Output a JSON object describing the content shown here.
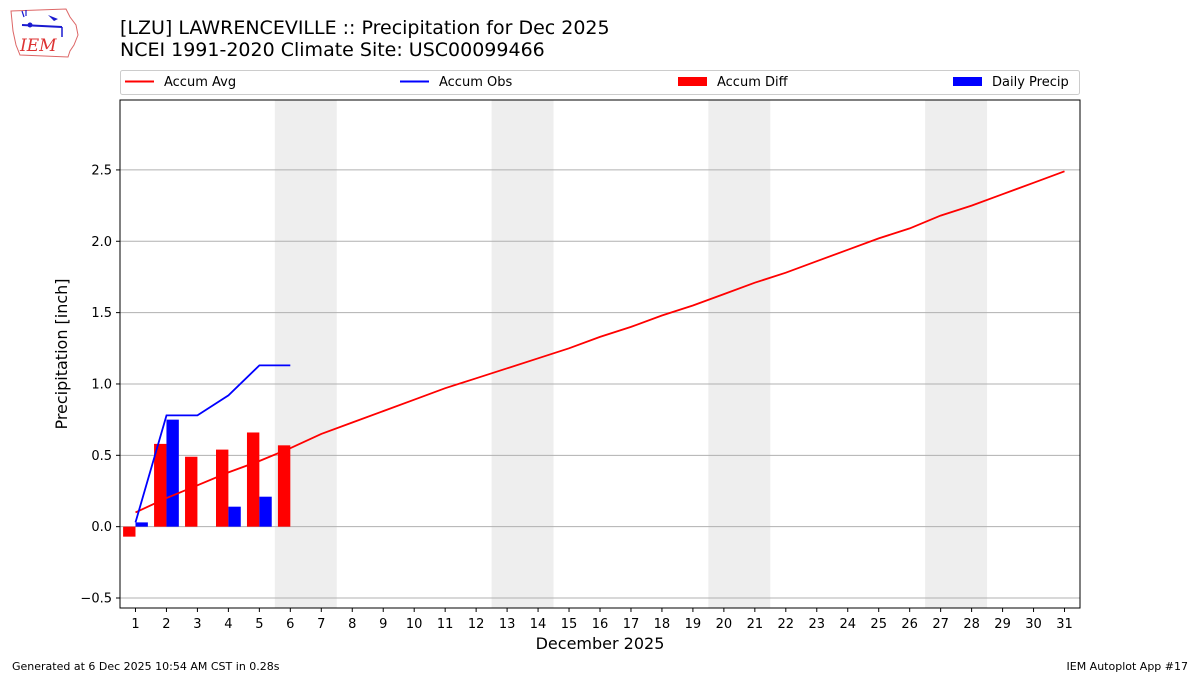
{
  "header": {
    "title_line1": "[LZU] LAWRENCEVILLE :: Precipitation for Dec 2025",
    "title_line2": "NCEI 1991-2020 Climate Site: USC00099466"
  },
  "logo": {
    "text": "IEM",
    "icon": "iem-iowa-logo-icon"
  },
  "footer": {
    "generated": "Generated at 6 Dec 2025 10:54 AM CST in 0.28s",
    "app": "IEM Autoplot App #17"
  },
  "colors": {
    "avg": "#ff0000",
    "obs": "#0000ff",
    "diff": "#ff0000",
    "daily": "#0000ff",
    "weekend": "#eeeeee",
    "grid": "#b0b0b0"
  },
  "chart_data": {
    "type": "bar",
    "title": "[LZU] LAWRENCEVILLE :: Precipitation for Dec 2025",
    "xlabel": "December 2025",
    "ylabel": "Precipitation [inch]",
    "xlim": [
      0.5,
      31.5
    ],
    "ylim": [
      -0.57,
      2.99
    ],
    "x_ticks": [
      1,
      2,
      3,
      4,
      5,
      6,
      7,
      8,
      9,
      10,
      11,
      12,
      13,
      14,
      15,
      16,
      17,
      18,
      19,
      20,
      21,
      22,
      23,
      24,
      25,
      26,
      27,
      28,
      29,
      30,
      31
    ],
    "y_ticks": [
      -0.5,
      0.0,
      0.5,
      1.0,
      1.5,
      2.0,
      2.5
    ],
    "y_tick_labels": [
      "−0.5",
      "0.0",
      "0.5",
      "1.0",
      "1.5",
      "2.0",
      "2.5"
    ],
    "grid": "horizontal",
    "legend": {
      "position": "top",
      "entries": [
        "Accum Avg",
        "Accum Obs",
        "Accum Diff",
        "Daily Precip"
      ]
    },
    "weekend_spans": [
      [
        6,
        7
      ],
      [
        13,
        14
      ],
      [
        20,
        21
      ],
      [
        27,
        28
      ]
    ],
    "series": [
      {
        "name": "Accum Avg",
        "kind": "line",
        "color": "#ff0000",
        "x": [
          1,
          2,
          3,
          4,
          5,
          6,
          7,
          8,
          9,
          10,
          11,
          12,
          13,
          14,
          15,
          16,
          17,
          18,
          19,
          20,
          21,
          22,
          23,
          24,
          25,
          26,
          27,
          28,
          29,
          30,
          31
        ],
        "values": [
          0.1,
          0.2,
          0.29,
          0.38,
          0.46,
          0.55,
          0.65,
          0.73,
          0.81,
          0.89,
          0.97,
          1.04,
          1.11,
          1.18,
          1.25,
          1.33,
          1.4,
          1.48,
          1.55,
          1.63,
          1.71,
          1.78,
          1.86,
          1.94,
          2.02,
          2.09,
          2.18,
          2.25,
          2.33,
          2.41,
          2.49
        ]
      },
      {
        "name": "Accum Obs",
        "kind": "line",
        "color": "#0000ff",
        "x": [
          1,
          2,
          3,
          4,
          5,
          6
        ],
        "values": [
          0.03,
          0.78,
          0.78,
          0.92,
          1.13,
          1.13
        ]
      },
      {
        "name": "Accum Diff",
        "kind": "bar",
        "color": "#ff0000",
        "x": [
          1,
          2,
          3,
          4,
          5,
          6
        ],
        "values": [
          -0.07,
          0.58,
          0.49,
          0.54,
          0.66,
          0.57
        ]
      },
      {
        "name": "Daily Precip",
        "kind": "bar",
        "color": "#0000ff",
        "x": [
          1,
          2,
          3,
          4,
          5,
          6
        ],
        "values": [
          0.03,
          0.75,
          0.0,
          0.14,
          0.21,
          0.0
        ]
      }
    ]
  }
}
